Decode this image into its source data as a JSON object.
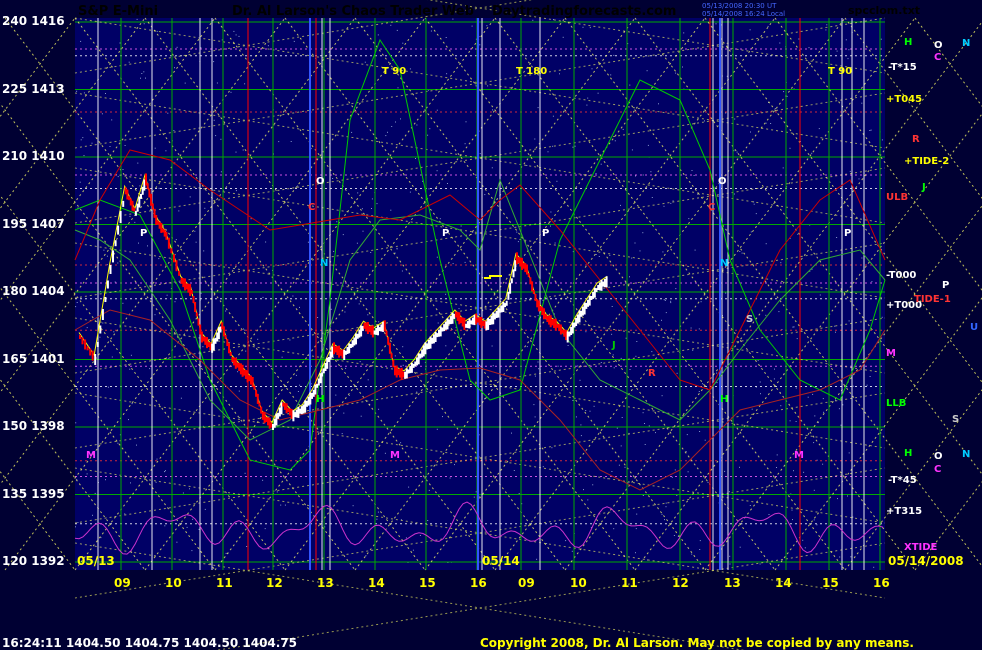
{
  "header": {
    "symbol": "S&P E-Mini",
    "title": "Dr. Al Larson's Chaos Trader Web",
    "site": "Daytradingforecasts.com",
    "timestamp_line1": "05/13/2008 20:30 UT",
    "timestamp_line2": "05/14/2008 16:24 Local",
    "filename": "spcclom.txt"
  },
  "footer": {
    "quote": "16:24:11  1404.50 1404.75 1404.50 1404.75",
    "copyright": "Copyright 2008, Dr. Al Larson. May not be copied by any means."
  },
  "colors": {
    "background": "#000033",
    "plot_background": "#000066",
    "symbol": "#ff0000",
    "title": "#ffff00",
    "site": "#ff33ff",
    "filename": "#00aaff",
    "up_bar": "#ffffff",
    "down_bar": "#ff0000",
    "moving_avg": "#ffff00",
    "green_curve": "#00cc00",
    "red_curve": "#cc0000",
    "xtide_curve": "#cc33cc",
    "grid": "#00aa00",
    "day_divider": "#ff0000",
    "time_line": "#ffffff",
    "harmonic_lines": "#ffff66",
    "copyright": "#ffff00"
  },
  "chart_data": {
    "type": "bar",
    "title": "S&P E-Mini",
    "y_axis_left": {
      "ticks": [
        240,
        225,
        210,
        195,
        180,
        165,
        150,
        135,
        120
      ],
      "labels": [
        "240",
        "225",
        "210",
        "195",
        "180",
        "165",
        "150",
        "135",
        "120"
      ]
    },
    "y_axis_right": {
      "ticks": [
        1416,
        1413,
        1410,
        1407,
        1404,
        1401,
        1398,
        1395,
        1392
      ],
      "labels": [
        "1416",
        "1413",
        "1410",
        "1407",
        "1404",
        "1401",
        "1398",
        "1395",
        "1392"
      ]
    },
    "ylim": [
      1392,
      1417
    ],
    "x_axis": {
      "hour_labels": [
        "09",
        "10",
        "11",
        "12",
        "13",
        "14",
        "15",
        "16",
        "09",
        "10",
        "11",
        "12",
        "13",
        "14",
        "15",
        "16"
      ],
      "date_labels": [
        "05/13",
        "05/14",
        "05/14/2008"
      ]
    },
    "price_series": [
      {
        "t": 0.0,
        "p": 1402.0
      },
      {
        "t": 0.3,
        "p": 1401.0
      },
      {
        "t": 0.6,
        "p": 1405.0
      },
      {
        "t": 0.9,
        "p": 1408.5
      },
      {
        "t": 1.1,
        "p": 1407.5
      },
      {
        "t": 1.3,
        "p": 1409.0
      },
      {
        "t": 1.5,
        "p": 1407.2
      },
      {
        "t": 1.7,
        "p": 1406.5
      },
      {
        "t": 2.0,
        "p": 1404.5
      },
      {
        "t": 2.2,
        "p": 1404.0
      },
      {
        "t": 2.4,
        "p": 1402.0
      },
      {
        "t": 2.6,
        "p": 1401.5
      },
      {
        "t": 2.8,
        "p": 1402.5
      },
      {
        "t": 3.0,
        "p": 1401.0
      },
      {
        "t": 3.2,
        "p": 1400.5
      },
      {
        "t": 3.4,
        "p": 1400.0
      },
      {
        "t": 3.6,
        "p": 1398.5
      },
      {
        "t": 3.8,
        "p": 1398.0
      },
      {
        "t": 4.0,
        "p": 1399.0
      },
      {
        "t": 4.2,
        "p": 1398.5
      },
      {
        "t": 4.4,
        "p": 1398.8
      },
      {
        "t": 4.6,
        "p": 1399.5
      },
      {
        "t": 4.8,
        "p": 1400.5
      },
      {
        "t": 5.0,
        "p": 1401.5
      },
      {
        "t": 5.2,
        "p": 1401.2
      },
      {
        "t": 5.4,
        "p": 1401.8
      },
      {
        "t": 5.6,
        "p": 1402.5
      },
      {
        "t": 5.8,
        "p": 1402.2
      },
      {
        "t": 6.0,
        "p": 1402.5
      },
      {
        "t": 6.2,
        "p": 1400.5
      },
      {
        "t": 6.4,
        "p": 1400.3
      },
      {
        "t": 6.6,
        "p": 1400.8
      },
      {
        "t": 6.8,
        "p": 1401.5
      },
      {
        "t": 7.0,
        "p": 1402.0
      },
      {
        "t": 7.2,
        "p": 1402.5
      },
      {
        "t": 7.4,
        "p": 1403.0
      },
      {
        "t": 7.6,
        "p": 1402.5
      },
      {
        "t": 7.8,
        "p": 1402.8
      },
      {
        "t": 8.0,
        "p": 1402.5
      },
      {
        "t": 8.2,
        "p": 1403.0
      },
      {
        "t": 8.4,
        "p": 1403.5
      },
      {
        "t": 8.6,
        "p": 1405.5
      },
      {
        "t": 8.8,
        "p": 1405.0
      },
      {
        "t": 9.0,
        "p": 1403.5
      },
      {
        "t": 9.2,
        "p": 1402.8
      },
      {
        "t": 9.4,
        "p": 1402.5
      },
      {
        "t": 9.6,
        "p": 1402.0
      },
      {
        "t": 9.8,
        "p": 1402.8
      },
      {
        "t": 10.0,
        "p": 1403.5
      },
      {
        "t": 10.2,
        "p": 1404.2
      },
      {
        "t": 10.4,
        "p": 1404.5
      }
    ],
    "annotations": {
      "right_levels": [
        "-T*15",
        "+T045",
        "+TIDE-2",
        "ULB",
        "-T000",
        "+T000",
        "TIDE-1",
        "M",
        "LLB",
        "-T*45",
        "+T315",
        "XTIDE"
      ],
      "planet_letters": [
        "H",
        "O",
        "N",
        "C",
        "R",
        "J",
        "P",
        "U",
        "S",
        "H",
        "N",
        "O",
        "C"
      ],
      "time_markers": [
        "T 90",
        "T 180",
        "T 90"
      ],
      "chart_letters": [
        "P",
        "O",
        "C",
        "N",
        "P",
        "P",
        "O",
        "C",
        "N",
        "P",
        "J",
        "R",
        "H",
        "H",
        "S",
        "M",
        "M",
        "M"
      ]
    }
  }
}
